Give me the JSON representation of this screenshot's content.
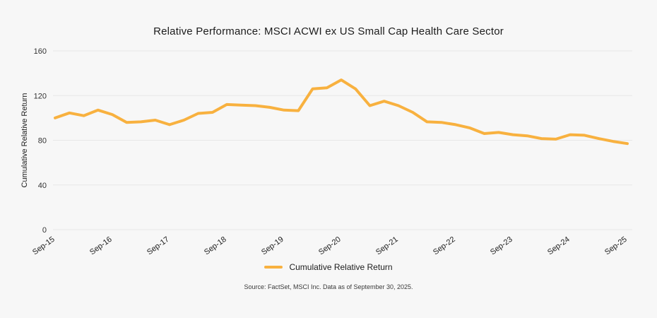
{
  "chart_data": {
    "type": "line",
    "title": "Relative Performance: MSCI ACWI ex US Small Cap Health Care Sector",
    "ylabel": "Cumulative Relative Return",
    "xlabel": "",
    "ylim": [
      0,
      160
    ],
    "yticks": [
      0,
      40,
      80,
      120,
      160
    ],
    "grid": "horizontal",
    "gridline_color": "#e7e7e7",
    "background_color": "#f7f7f7",
    "legend_position": "bottom-center",
    "x_tick_labels": [
      "Sep-15",
      "Sep-16",
      "Sep-17",
      "Sep-18",
      "Sep-19",
      "Sep-20",
      "Sep-21",
      "Sep-22",
      "Sep-23",
      "Sep-24",
      "Sep-25"
    ],
    "x_ticks_every": 4,
    "series": [
      {
        "name": "Cumulative Relative Return",
        "color": "#F8B13F",
        "x": [
          "Sep-15",
          "Dec-15",
          "Mar-16",
          "Jun-16",
          "Sep-16",
          "Dec-16",
          "Mar-17",
          "Jun-17",
          "Sep-17",
          "Dec-17",
          "Mar-18",
          "Jun-18",
          "Sep-18",
          "Dec-18",
          "Mar-19",
          "Jun-19",
          "Sep-19",
          "Dec-19",
          "Mar-20",
          "Jun-20",
          "Sep-20",
          "Dec-20",
          "Mar-21",
          "Jun-21",
          "Sep-21",
          "Dec-21",
          "Mar-22",
          "Jun-22",
          "Sep-22",
          "Dec-22",
          "Mar-23",
          "Jun-23",
          "Sep-23",
          "Dec-23",
          "Mar-24",
          "Jun-24",
          "Sep-24",
          "Dec-24",
          "Mar-25",
          "Jun-25",
          "Sep-25"
        ],
        "values": [
          100,
          104.5,
          102,
          107,
          103,
          96,
          96.5,
          98,
          94,
          98,
          104,
          105,
          112,
          111.5,
          111,
          109.5,
          107,
          106.5,
          126,
          127,
          134,
          126,
          111,
          115,
          111,
          105,
          96.5,
          96,
          94,
          91,
          86,
          87,
          85,
          84,
          81.5,
          81,
          85,
          84.5,
          81.5,
          79,
          77
        ]
      }
    ],
    "source_note": "Source: FactSet, MSCI Inc. Data as of September 30, 2025."
  }
}
